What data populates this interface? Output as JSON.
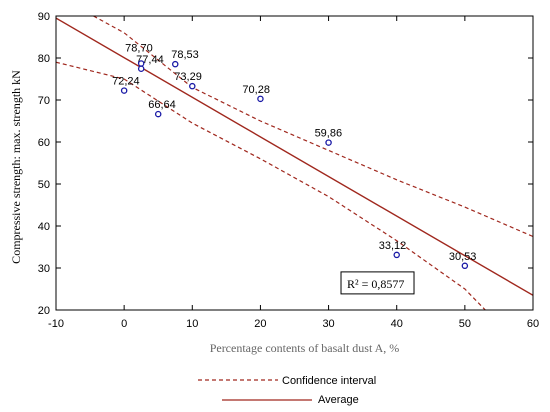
{
  "chart_data": {
    "type": "scatter",
    "xlabel": "Percentage contents of basalt dust A, %",
    "ylabel": "Compressive strength: max. strength kN",
    "xlim": [
      -10,
      60
    ],
    "ylim": [
      20,
      90
    ],
    "xticks": [
      -10,
      0,
      10,
      20,
      30,
      40,
      50,
      60
    ],
    "yticks": [
      20,
      30,
      40,
      50,
      60,
      70,
      80,
      90
    ],
    "tick_labels_x": [
      "-10",
      "0",
      "10",
      "20",
      "30",
      "40",
      "50",
      "60"
    ],
    "tick_labels_y": [
      "20",
      "30",
      "40",
      "50",
      "60",
      "70",
      "80",
      "90"
    ],
    "points": [
      {
        "x": 0,
        "y": 72.24,
        "label": "72,24"
      },
      {
        "x": 2.5,
        "y": 77.44,
        "label": "77,44"
      },
      {
        "x": 2.5,
        "y": 78.7,
        "label": "78,70"
      },
      {
        "x": 5,
        "y": 66.64,
        "label": "66,64"
      },
      {
        "x": 7.5,
        "y": 78.53,
        "label": "78,53"
      },
      {
        "x": 10,
        "y": 73.29,
        "label": "73,29"
      },
      {
        "x": 20,
        "y": 70.28,
        "label": "70,28"
      },
      {
        "x": 30,
        "y": 59.86,
        "label": "59,86"
      },
      {
        "x": 40,
        "y": 33.12,
        "label": "33,12"
      },
      {
        "x": 50,
        "y": 30.53,
        "label": "30,53"
      }
    ],
    "fit_line": {
      "x": [
        -10,
        60
      ],
      "y": [
        89.5,
        23.5
      ]
    },
    "confidence_upper": {
      "x": [
        -4.5,
        0,
        10,
        20,
        30,
        40,
        50,
        60
      ],
      "y": [
        90,
        86,
        73,
        65,
        58,
        51,
        44.5,
        37.5
      ]
    },
    "confidence_lower": {
      "x": [
        -10,
        0,
        10,
        20,
        30,
        40,
        50,
        53
      ],
      "y": [
        79,
        75,
        64.5,
        56,
        47,
        36.5,
        25,
        20
      ]
    },
    "annotation": {
      "text": "R² = 0,8577",
      "x": 33,
      "y": 25.5
    },
    "legend": {
      "position": "bottom",
      "entries": [
        {
          "label": "Confidence interval",
          "style": "dashed"
        },
        {
          "label": "Average",
          "style": "solid"
        }
      ]
    },
    "colors": {
      "line": "#a0281e",
      "point": "#1a1aa6"
    },
    "grid": false
  }
}
